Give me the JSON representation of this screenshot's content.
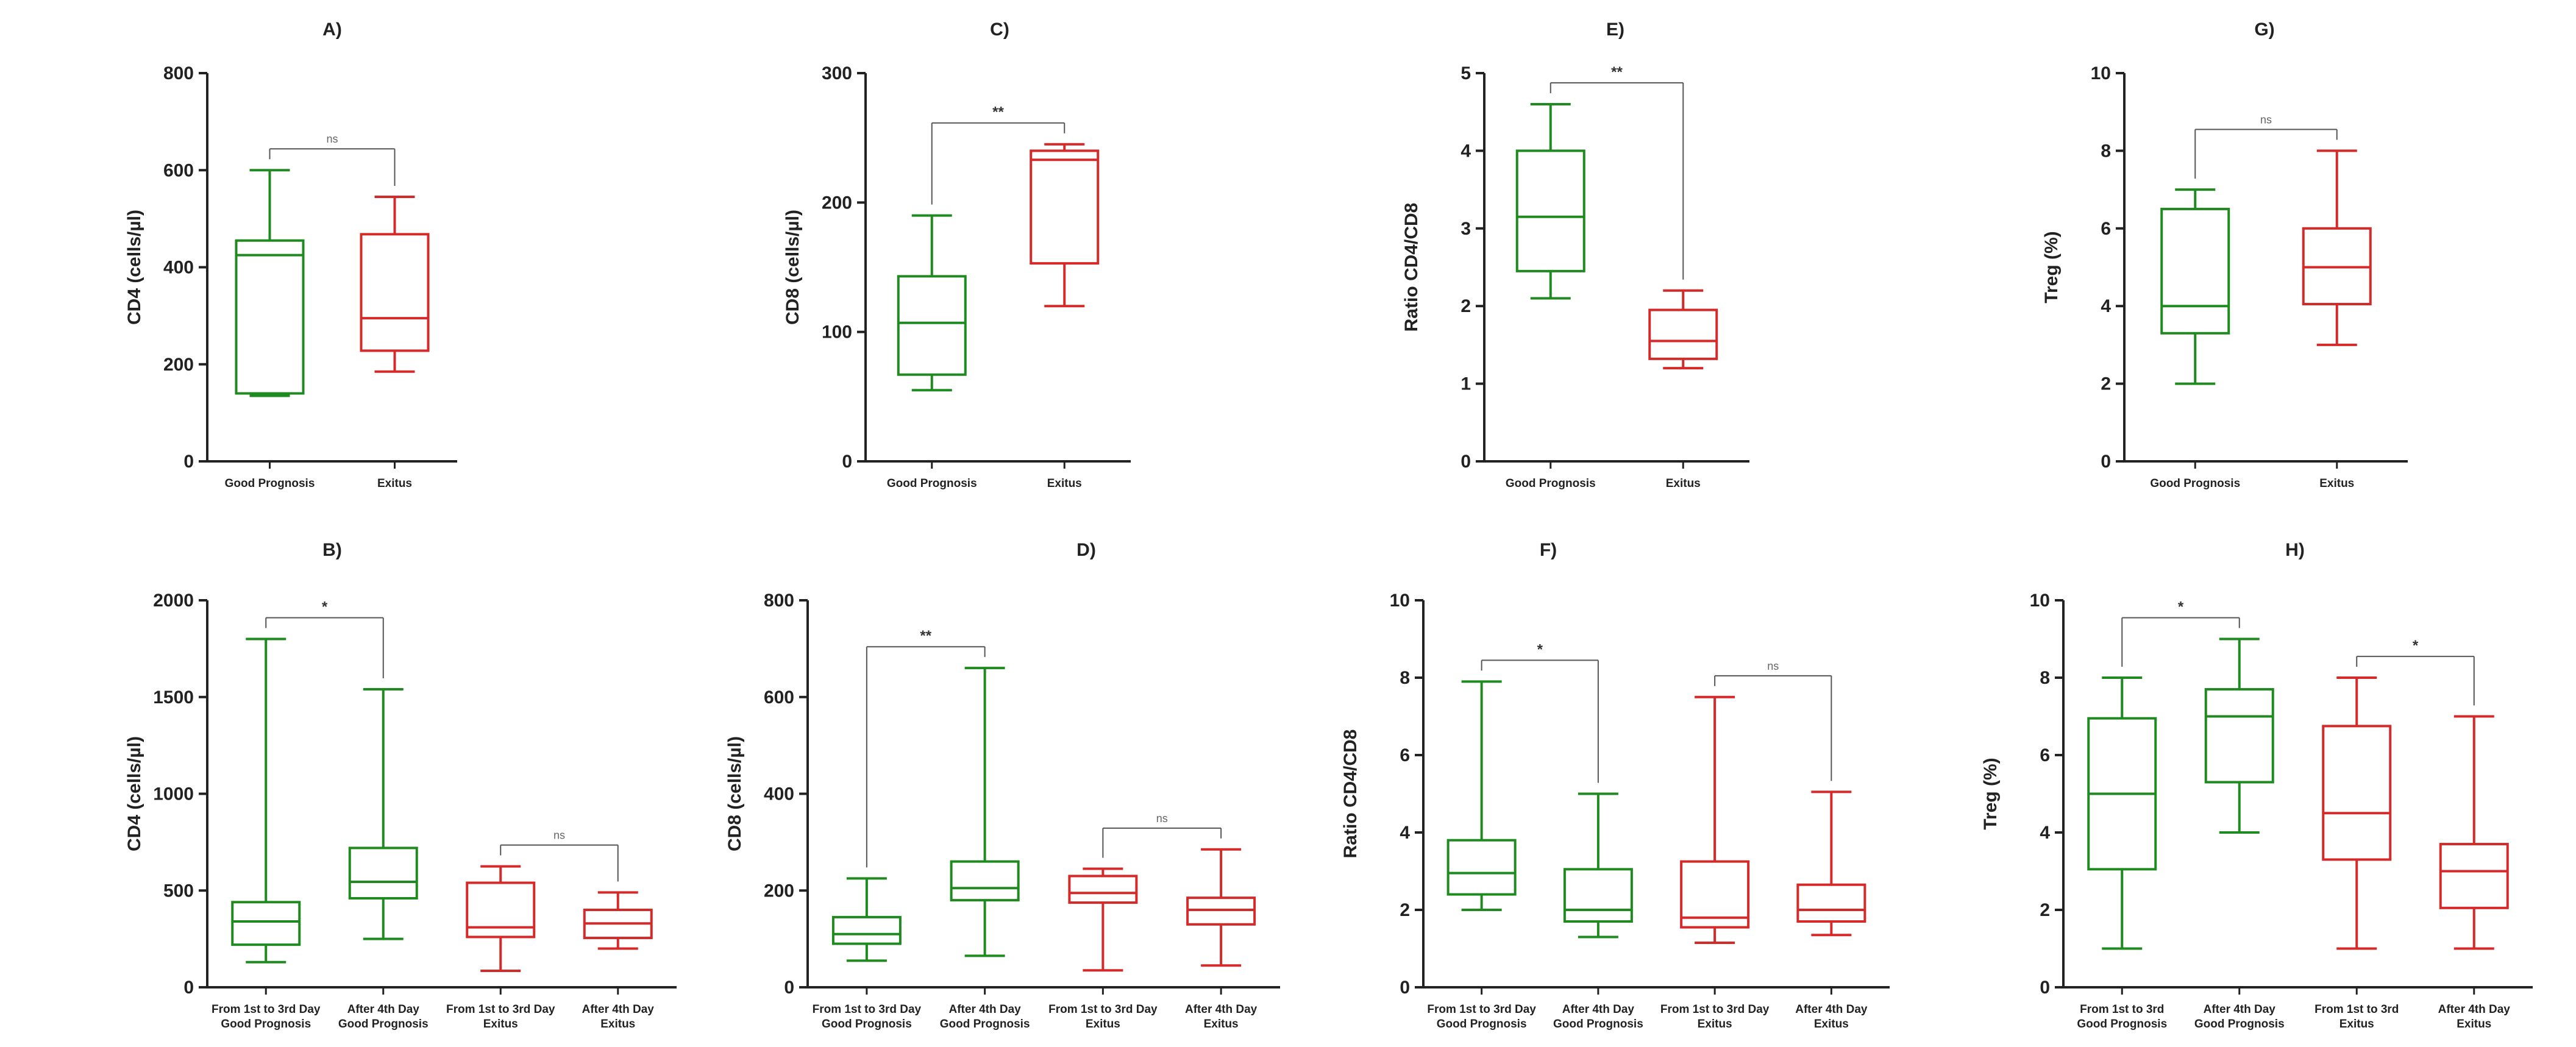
{
  "colors": {
    "good": "#1f8a1f",
    "exitus": "#d42a2a",
    "axis": "#222222",
    "bracket": "#555555"
  },
  "chart_data": [
    {
      "id": "A",
      "type": "boxplot",
      "title": "A)",
      "ylabel": "CD4 (cells/µl)",
      "ylim": [
        0,
        800
      ],
      "yticks": [
        0,
        200,
        400,
        600,
        800
      ],
      "categories": [
        "Good Prognosis",
        "Exitus"
      ],
      "boxes": [
        {
          "group": "good",
          "min": 135,
          "q1": 140,
          "median": 425,
          "q3": 455,
          "max": 600
        },
        {
          "group": "exitus",
          "min": 185,
          "q1": 228,
          "median": 295,
          "q3": 468,
          "max": 545
        }
      ],
      "brackets": [
        {
          "from": 0,
          "to": 1,
          "label": "ns"
        }
      ]
    },
    {
      "id": "C",
      "type": "boxplot",
      "title": "C)",
      "ylabel": "CD8 (cells/µl)",
      "ylim": [
        0,
        300
      ],
      "yticks": [
        0,
        100,
        200,
        300
      ],
      "categories": [
        "Good Prognosis",
        "Exitus"
      ],
      "boxes": [
        {
          "group": "good",
          "min": 55,
          "q1": 67,
          "median": 107,
          "q3": 143,
          "max": 190
        },
        {
          "group": "exitus",
          "min": 120,
          "q1": 153,
          "median": 233,
          "q3": 240,
          "max": 245
        }
      ],
      "brackets": [
        {
          "from": 0,
          "to": 1,
          "label": "**"
        }
      ]
    },
    {
      "id": "E",
      "type": "boxplot",
      "title": "E)",
      "ylabel": "Ratio CD4/CD8",
      "ylim": [
        0,
        5
      ],
      "yticks": [
        0,
        1,
        2,
        3,
        4,
        5
      ],
      "categories": [
        "Good Prognosis",
        "Exitus"
      ],
      "boxes": [
        {
          "group": "good",
          "min": 2.1,
          "q1": 2.45,
          "median": 3.15,
          "q3": 4.0,
          "max": 4.6
        },
        {
          "group": "exitus",
          "min": 1.2,
          "q1": 1.32,
          "median": 1.55,
          "q3": 1.95,
          "max": 2.2
        }
      ],
      "brackets": [
        {
          "from": 0,
          "to": 1,
          "label": "**"
        }
      ]
    },
    {
      "id": "G",
      "type": "boxplot",
      "title": "G)",
      "ylabel": "Treg (%)",
      "ylim": [
        0,
        10
      ],
      "yticks": [
        0,
        2,
        4,
        6,
        8,
        10
      ],
      "categories": [
        "Good Prognosis",
        "Exitus"
      ],
      "boxes": [
        {
          "group": "good",
          "min": 2,
          "q1": 3.3,
          "median": 4,
          "q3": 6.5,
          "max": 7
        },
        {
          "group": "exitus",
          "min": 3,
          "q1": 4.05,
          "median": 5,
          "q3": 6,
          "max": 8
        }
      ],
      "brackets": [
        {
          "from": 0,
          "to": 1,
          "label": "ns"
        }
      ]
    },
    {
      "id": "B",
      "type": "boxplot",
      "title": "B)",
      "ylabel": "CD4 (cells/µl)",
      "ylim": [
        0,
        2000
      ],
      "yticks": [
        0,
        500,
        1000,
        1500,
        2000
      ],
      "categories": [
        [
          "From 1st to 3rd Day",
          "Good Prognosis"
        ],
        [
          "After 4th Day",
          "Good Prognosis"
        ],
        [
          "From 1st to 3rd Day",
          "Exitus"
        ],
        [
          "After 4th Day",
          "Exitus"
        ]
      ],
      "boxes": [
        {
          "group": "good",
          "min": 130,
          "q1": 220,
          "median": 340,
          "q3": 440,
          "max": 1800
        },
        {
          "group": "good",
          "min": 250,
          "q1": 460,
          "median": 545,
          "q3": 720,
          "max": 1540
        },
        {
          "group": "exitus",
          "min": 85,
          "q1": 260,
          "median": 310,
          "q3": 540,
          "max": 625
        },
        {
          "group": "exitus",
          "min": 200,
          "q1": 255,
          "median": 330,
          "q3": 400,
          "max": 490
        }
      ],
      "brackets": [
        {
          "from": 0,
          "to": 1,
          "label": "*"
        },
        {
          "from": 2,
          "to": 3,
          "label": "ns"
        }
      ]
    },
    {
      "id": "D",
      "type": "boxplot",
      "title": "D)",
      "ylabel": "CD8 (cells/µl)",
      "ylim": [
        0,
        800
      ],
      "yticks": [
        0,
        200,
        400,
        600,
        800
      ],
      "categories": [
        [
          "From 1st to 3rd Day",
          "Good Prognosis"
        ],
        [
          "After 4th Day",
          "Good Prognosis"
        ],
        [
          "From 1st to 3rd Day",
          "Exitus"
        ],
        [
          "After 4th Day",
          "Exitus"
        ]
      ],
      "boxes": [
        {
          "group": "good",
          "min": 55,
          "q1": 90,
          "median": 110,
          "q3": 145,
          "max": 225
        },
        {
          "group": "good",
          "min": 65,
          "q1": 180,
          "median": 205,
          "q3": 260,
          "max": 660
        },
        {
          "group": "exitus",
          "min": 35,
          "q1": 175,
          "median": 195,
          "q3": 230,
          "max": 245
        },
        {
          "group": "exitus",
          "min": 45,
          "q1": 130,
          "median": 160,
          "q3": 185,
          "max": 285
        }
      ],
      "brackets": [
        {
          "from": 0,
          "to": 1,
          "label": "**"
        },
        {
          "from": 2,
          "to": 3,
          "label": "ns"
        }
      ]
    },
    {
      "id": "F",
      "type": "boxplot",
      "title": "F)",
      "ylabel": "Ratio CD4/CD8",
      "ylim": [
        0,
        10
      ],
      "yticks": [
        0,
        2,
        4,
        6,
        8,
        10
      ],
      "categories": [
        [
          "From 1st to 3rd Day",
          "Good Prognosis"
        ],
        [
          "After 4th Day",
          "Good Prognosis"
        ],
        [
          "From 1st to 3rd Day",
          "Exitus"
        ],
        [
          "After 4th Day",
          "Exitus"
        ]
      ],
      "boxes": [
        {
          "group": "good",
          "min": 2.0,
          "q1": 2.4,
          "median": 2.95,
          "q3": 3.8,
          "max": 7.9
        },
        {
          "group": "good",
          "min": 1.3,
          "q1": 1.7,
          "median": 2.0,
          "q3": 3.05,
          "max": 5.0
        },
        {
          "group": "exitus",
          "min": 1.15,
          "q1": 1.55,
          "median": 1.8,
          "q3": 3.25,
          "max": 7.5
        },
        {
          "group": "exitus",
          "min": 1.35,
          "q1": 1.7,
          "median": 2.0,
          "q3": 2.65,
          "max": 5.05
        }
      ],
      "brackets": [
        {
          "from": 0,
          "to": 1,
          "label": "*"
        },
        {
          "from": 2,
          "to": 3,
          "label": "ns"
        }
      ]
    },
    {
      "id": "H",
      "type": "boxplot",
      "title": "H)",
      "ylabel": "Treg (%)",
      "ylim": [
        0,
        10
      ],
      "yticks": [
        0,
        2,
        4,
        6,
        8,
        10
      ],
      "categories": [
        [
          "From 1st to 3rd",
          "Good Prognosis"
        ],
        [
          "After 4th Day",
          "Good Prognosis"
        ],
        [
          "From 1st to 3rd",
          "Exitus"
        ],
        [
          "After 4th Day",
          "Exitus"
        ]
      ],
      "boxes": [
        {
          "group": "good",
          "min": 1,
          "q1": 3.05,
          "median": 5,
          "q3": 6.95,
          "max": 8
        },
        {
          "group": "good",
          "min": 4,
          "q1": 5.3,
          "median": 7,
          "q3": 7.7,
          "max": 9
        },
        {
          "group": "exitus",
          "min": 1,
          "q1": 3.3,
          "median": 4.5,
          "q3": 6.75,
          "max": 8
        },
        {
          "group": "exitus",
          "min": 1,
          "q1": 2.05,
          "median": 3,
          "q3": 3.7,
          "max": 7
        }
      ],
      "brackets": [
        {
          "from": 0,
          "to": 1,
          "label": "*"
        },
        {
          "from": 2,
          "to": 3,
          "label": "*"
        }
      ]
    }
  ]
}
